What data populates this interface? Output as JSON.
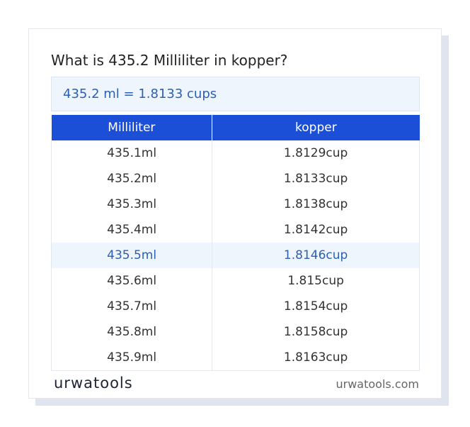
{
  "title": "What is 435.2 Milliliter in kopper?",
  "result": "435.2 ml = 1.8133 cups",
  "table": {
    "header": [
      "Milliliter",
      "kopper"
    ],
    "rows": [
      [
        "435.1ml",
        "1.8129cup"
      ],
      [
        "435.2ml",
        "1.8133cup"
      ],
      [
        "435.3ml",
        "1.8138cup"
      ],
      [
        "435.4ml",
        "1.8142cup"
      ],
      [
        "435.5ml",
        "1.8146cup"
      ],
      [
        "435.6ml",
        "1.815cup"
      ],
      [
        "435.7ml",
        "1.8154cup"
      ],
      [
        "435.8ml",
        "1.8158cup"
      ],
      [
        "435.9ml",
        "1.8163cup"
      ]
    ]
  },
  "footer": {
    "logo": "urwatools",
    "site": "urwatools.com"
  }
}
